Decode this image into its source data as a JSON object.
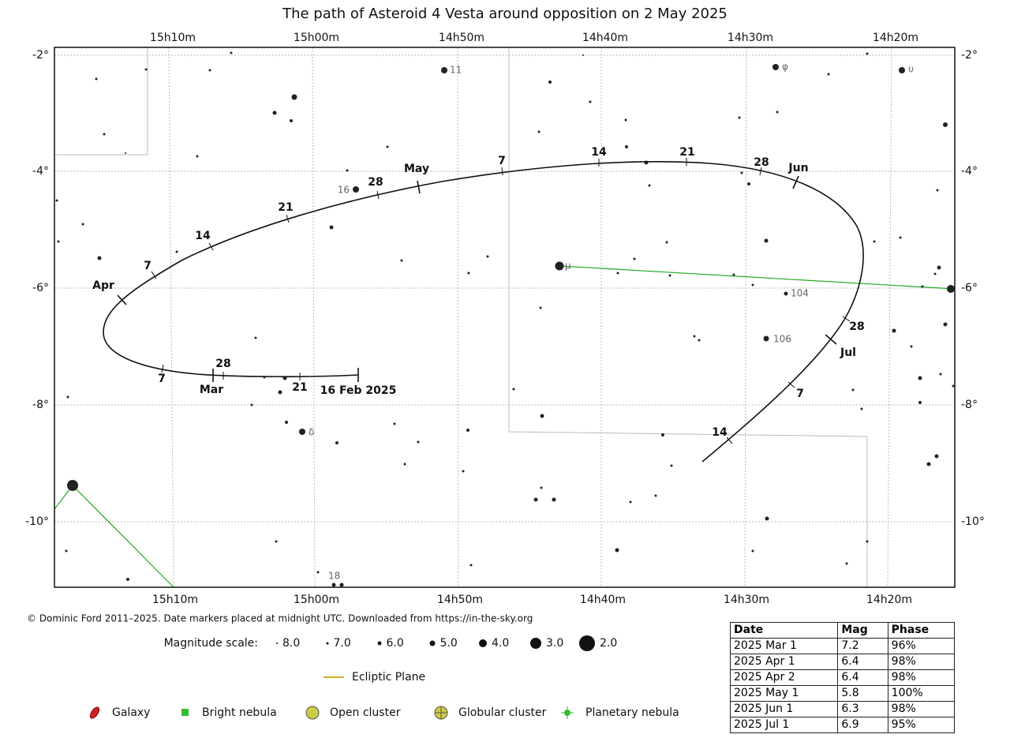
{
  "title": "The path of Asteroid 4 Vesta around opposition on 2 May 2025",
  "top_ra_labels": [
    "15h10m",
    "15h00m",
    "14h50m",
    "14h40m",
    "14h30m",
    "14h20m"
  ],
  "bottom_ra_labels": [
    "15h10m",
    "15h00m",
    "14h50m",
    "14h40m",
    "14h30m",
    "14h20m"
  ],
  "dec_labels": [
    "-2°",
    "-4°",
    "-6°",
    "-8°",
    "-10°"
  ],
  "path_labels": [
    "16 Feb 2025",
    "21",
    "28",
    "Mar",
    "7",
    "Apr",
    "7",
    "14",
    "21",
    "28",
    "May",
    "7",
    "14",
    "21",
    "28",
    "Jun",
    "28",
    "Jul",
    "7",
    "14"
  ],
  "star_labels": [
    "11",
    "16",
    "φ",
    "υ",
    "μ",
    "104",
    "106",
    "δ",
    "18"
  ],
  "copyright": "© Dominic Ford 2011–2025. Date markers placed at midnight UTC. Downloaded from https://in-the-sky.org",
  "magnitude_scale": {
    "label": "Magnitude scale:",
    "items": [
      "8.0",
      "7.0",
      "6.0",
      "5.0",
      "4.0",
      "3.0",
      "2.0"
    ]
  },
  "ecliptic": "Ecliptic Plane",
  "legend": [
    "Galaxy",
    "Bright nebula",
    "Open cluster",
    "Globular cluster",
    "Planetary nebula"
  ],
  "table": {
    "header": [
      "Date",
      "Mag",
      "Phase"
    ],
    "rows": [
      [
        "2025 Mar 1",
        "7.2",
        "96%"
      ],
      [
        "2025 Apr 1",
        "6.4",
        "98%"
      ],
      [
        "2025 Apr 2",
        "6.4",
        "98%"
      ],
      [
        "2025 May 1",
        "5.8",
        "100%"
      ],
      [
        "2025 Jun 1",
        "6.3",
        "98%"
      ],
      [
        "2025 Jul 1",
        "6.9",
        "95%"
      ]
    ]
  }
}
